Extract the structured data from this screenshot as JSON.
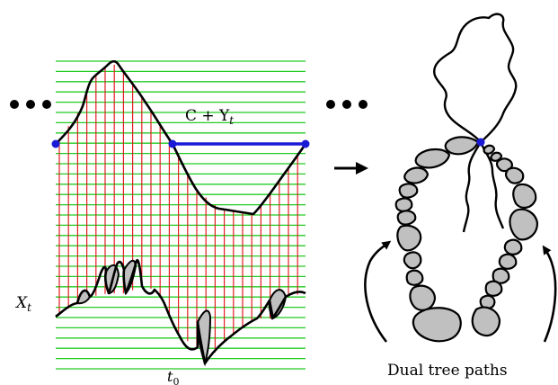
{
  "labels": {
    "c_plus_y": "C + Y",
    "c_plus_y_sub": "t",
    "x_var": "X",
    "x_sub": "t",
    "t_var": "t",
    "t_sub": "0",
    "caption": "Dual tree paths"
  },
  "colors": {
    "horizontal_lines": "#22cc22",
    "vertical_lines": "#e02020",
    "blue_segment": "#1a1ad6",
    "blob_fill": "#c0c0c0",
    "outline": "#000000"
  },
  "icons": {
    "ellipsis": "three-dots-icon",
    "arrow": "right-arrow-icon"
  }
}
